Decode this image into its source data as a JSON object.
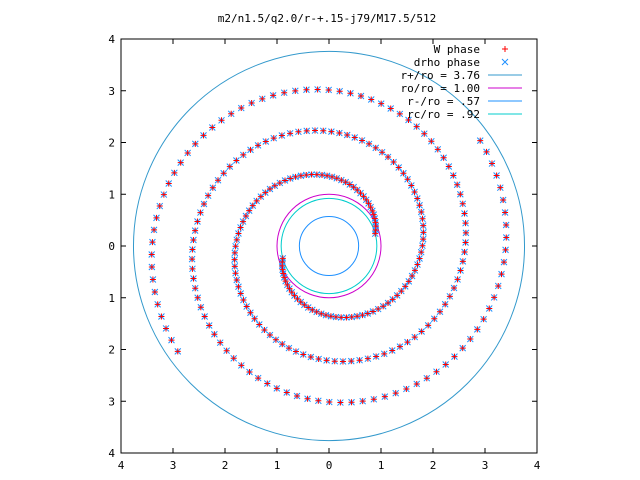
{
  "chart_data": {
    "type": "scatter",
    "title": "m2/n1.5/q2.0/r-+.15-j79/M17.5/512",
    "xlabel": "",
    "ylabel": "",
    "xlim": [
      -4,
      4
    ],
    "ylim": [
      -4,
      4
    ],
    "x_tick_values": [
      -4,
      -3,
      -2,
      -1,
      0,
      1,
      2,
      3,
      4
    ],
    "x_tick_labels": [
      "4",
      "3",
      "2",
      "1",
      "0",
      "1",
      "2",
      "3",
      "4"
    ],
    "y_tick_values": [
      4,
      3,
      2,
      1,
      0,
      -1,
      -2,
      -3,
      -4
    ],
    "y_tick_labels": [
      "4",
      "3",
      "2",
      "1",
      "0",
      "1",
      "2",
      "3",
      "4"
    ],
    "grid": false,
    "legend_position": "top-right",
    "legend": [
      {
        "label": "W phase",
        "kind": "marker",
        "marker": "plus",
        "color": "#ff0000"
      },
      {
        "label": "drho phase",
        "kind": "marker",
        "marker": "cross",
        "color": "#1e90ff"
      },
      {
        "label": "r+/ro = 3.76",
        "kind": "line",
        "color": "#3399cc"
      },
      {
        "label": "ro/ro = 1.00",
        "kind": "line",
        "color": "#cc00cc"
      },
      {
        "label": "r-/ro = .57",
        "kind": "line",
        "color": "#1e90ff"
      },
      {
        "label": "rc/ro = .92",
        "kind": "line",
        "color": "#00cccc"
      }
    ],
    "circles": [
      {
        "name": "r+/ro",
        "radius": 3.76,
        "color": "#3399cc"
      },
      {
        "name": "ro/ro",
        "radius": 1.0,
        "color": "#cc00cc"
      },
      {
        "name": "r-/ro",
        "radius": 0.57,
        "color": "#1e90ff"
      },
      {
        "name": "rc/ro",
        "radius": 0.92,
        "color": "#00cccc"
      }
    ],
    "series": [
      {
        "name": "W phase",
        "marker": "plus",
        "color": "#ff0000",
        "arms": [
          {
            "start_radius": 0.92,
            "end_radius": 3.55,
            "start_angle_deg": 15,
            "turn_deg": 560,
            "points": 140
          },
          {
            "start_radius": 0.92,
            "end_radius": 3.55,
            "start_angle_deg": 195,
            "turn_deg": 560,
            "points": 140
          }
        ]
      },
      {
        "name": "drho phase",
        "marker": "cross",
        "color": "#1e90ff",
        "arms": [
          {
            "start_radius": 0.92,
            "end_radius": 3.55,
            "start_angle_deg": 15,
            "turn_deg": 560,
            "points": 140
          },
          {
            "start_radius": 0.92,
            "end_radius": 3.55,
            "start_angle_deg": 195,
            "turn_deg": 560,
            "points": 140
          }
        ]
      }
    ]
  }
}
